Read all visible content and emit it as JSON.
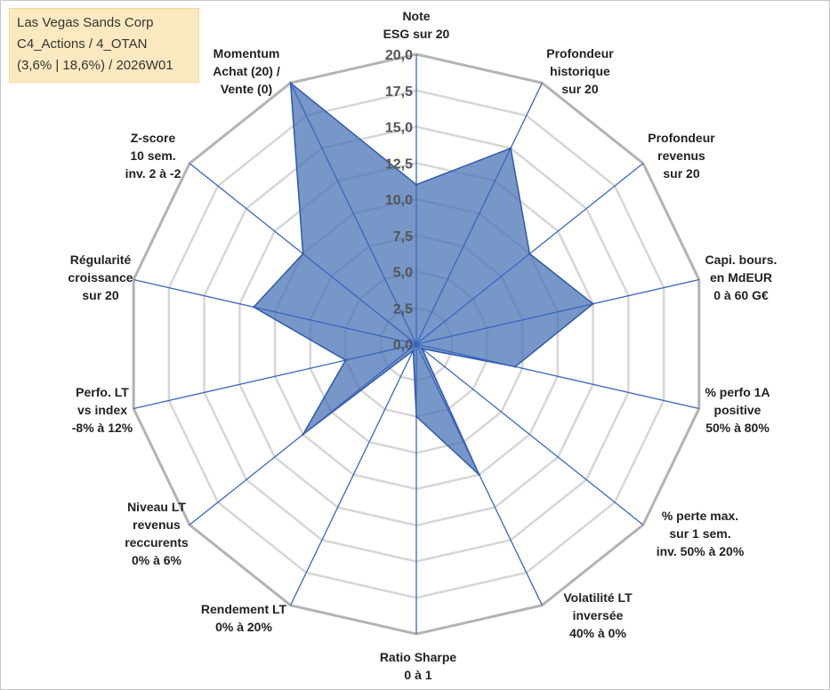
{
  "info_box": {
    "line1": "Las Vegas Sands Corp",
    "line2": "C4_Actions / 4_OTAN",
    "line3": "(3,6% | 18,6%) / 2026W01"
  },
  "colors": {
    "fill": "#4a74b5",
    "line": "#2f5aa8",
    "spoke": "#3a66c0",
    "grid_outer": "#b3b3b3",
    "grid_inner": "#d6d6d6"
  },
  "chart_data": {
    "type": "radar",
    "rmin": 0,
    "rmax": 20,
    "ticks": [
      "0,0",
      "2,5",
      "5,0",
      "7,5",
      "10,0",
      "12,5",
      "15,0",
      "17,5",
      "20,0"
    ],
    "axes": [
      {
        "label": [
          "Note",
          "ESG sur 20"
        ],
        "value": 11
      },
      {
        "label": [
          "Profondeur",
          "historique",
          "sur 20"
        ],
        "value": 15
      },
      {
        "label": [
          "Profondeur",
          "revenus",
          "sur 20"
        ],
        "value": 10
      },
      {
        "label": [
          "Capi. bours.",
          "en MdEUR",
          "0 à 60 G€"
        ],
        "value": 12.5
      },
      {
        "label": [
          "% perfo 1A",
          "positive",
          "50% à 80%"
        ],
        "value": 7
      },
      {
        "label": [
          "% perte max.",
          "sur 1 sem.",
          "inv. 50% à 20%"
        ],
        "value": 0.5
      },
      {
        "label": [
          "Volatilité LT",
          "inversée",
          "40% à 0%"
        ],
        "value": 10
      },
      {
        "label": [
          "Ratio Sharpe",
          "0 à 1"
        ],
        "value": 5
      },
      {
        "label": [
          "Rendement LT",
          "0% à 20%"
        ],
        "value": 0.5
      },
      {
        "label": [
          "Niveau LT",
          "revenus",
          "reccurents",
          "0% à 6%"
        ],
        "value": 10
      },
      {
        "label": [
          "Perfo. LT",
          "vs index",
          "-8% à 12%"
        ],
        "value": 5
      },
      {
        "label": [
          "Régularité",
          "croissance",
          "sur 20"
        ],
        "value": 11.5
      },
      {
        "label": [
          "Z-score",
          "10 sem.",
          "inv. 2 à -2"
        ],
        "value": 10
      },
      {
        "label": [
          "Momentum",
          "Achat (20) /",
          "Vente (0)"
        ],
        "value": 20
      }
    ]
  }
}
